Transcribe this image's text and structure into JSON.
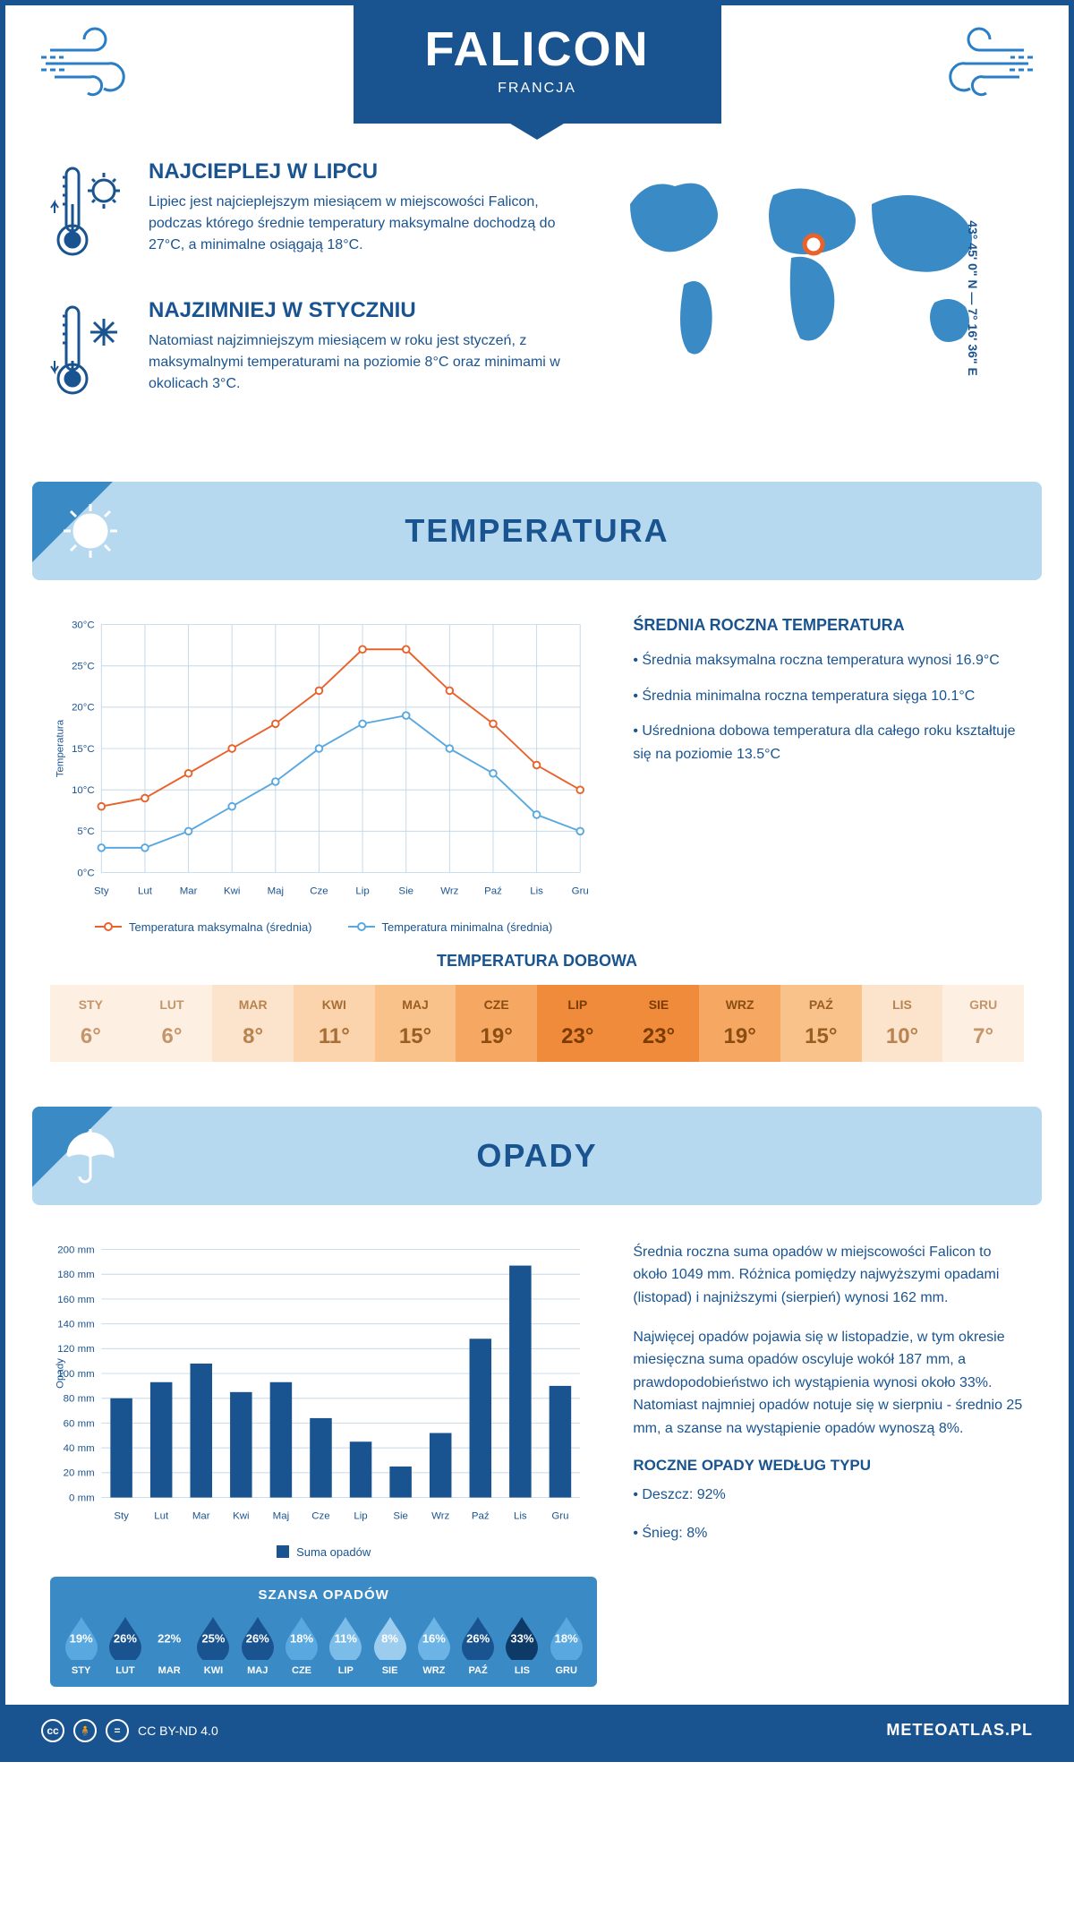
{
  "header": {
    "title": "FALICON",
    "country": "FRANCJA"
  },
  "coords": "43° 45' 0\" N — 7° 16' 36\" E",
  "facts": {
    "warm": {
      "title": "NAJCIEPLEJ W LIPCU",
      "text": "Lipiec jest najcieplejszym miesiącem w miejscowości Falicon, podczas którego średnie temperatury maksymalne dochodzą do 27°C, a minimalne osiągają 18°C."
    },
    "cold": {
      "title": "NAJZIMNIEJ W STYCZNIU",
      "text": "Natomiast najzimniejszym miesiącem w roku jest styczeń, z maksymalnymi temperaturami na poziomie 8°C oraz minimami w okolicach 3°C."
    }
  },
  "colors": {
    "primary": "#1a5490",
    "secondary": "#3a8ac5",
    "banner": "#b7d9f0",
    "orange": "#e8622c",
    "blue_line": "#5aa8e0",
    "bar": "#1a5490",
    "grid": "#c5d8e8"
  },
  "temperature": {
    "section_title": "TEMPERATURA",
    "chart": {
      "type": "line",
      "months": [
        "Sty",
        "Lut",
        "Mar",
        "Kwi",
        "Maj",
        "Cze",
        "Lip",
        "Sie",
        "Wrz",
        "Paź",
        "Lis",
        "Gru"
      ],
      "max": [
        8,
        9,
        12,
        15,
        18,
        22,
        27,
        27,
        22,
        18,
        13,
        10
      ],
      "min": [
        3,
        3,
        5,
        8,
        11,
        15,
        18,
        19,
        15,
        12,
        7,
        5
      ],
      "ylim": [
        0,
        30
      ],
      "ytick_step": 5,
      "ylabel": "Temperatura",
      "max_color": "#e8622c",
      "min_color": "#5aa8e0",
      "grid_color": "#c5d8e8",
      "line_width": 2,
      "marker_size": 4
    },
    "legend": {
      "max": "Temperatura maksymalna (średnia)",
      "min": "Temperatura minimalna (średnia)"
    },
    "info": {
      "title": "ŚREDNIA ROCZNA TEMPERATURA",
      "bullets": [
        "• Średnia maksymalna roczna temperatura wynosi 16.9°C",
        "• Średnia minimalna roczna temperatura sięga 10.1°C",
        "• Uśredniona dobowa temperatura dla całego roku kształtuje się na poziomie 13.5°C"
      ]
    },
    "daily": {
      "title": "TEMPERATURA DOBOWA",
      "months": [
        "STY",
        "LUT",
        "MAR",
        "KWI",
        "MAJ",
        "CZE",
        "LIP",
        "SIE",
        "WRZ",
        "PAŹ",
        "LIS",
        "GRU"
      ],
      "values": [
        "6°",
        "6°",
        "8°",
        "11°",
        "15°",
        "19°",
        "23°",
        "23°",
        "19°",
        "15°",
        "10°",
        "7°"
      ],
      "bg_colors": [
        "#fdf0e2",
        "#fdf0e2",
        "#fce4cc",
        "#fbd4ad",
        "#f9c28a",
        "#f6a863",
        "#f08b3c",
        "#f08b3c",
        "#f6a863",
        "#f9c28a",
        "#fce4cc",
        "#fdf0e2"
      ],
      "text_colors": [
        "#c4956a",
        "#c4956a",
        "#b8834f",
        "#a86f35",
        "#9a5e22",
        "#8a4d12",
        "#7a3c00",
        "#7a3c00",
        "#8a4d12",
        "#9a5e22",
        "#b8834f",
        "#c4956a"
      ]
    }
  },
  "precipitation": {
    "section_title": "OPADY",
    "chart": {
      "type": "bar",
      "months": [
        "Sty",
        "Lut",
        "Mar",
        "Kwi",
        "Maj",
        "Cze",
        "Lip",
        "Sie",
        "Wrz",
        "Paź",
        "Lis",
        "Gru"
      ],
      "values": [
        80,
        93,
        108,
        85,
        93,
        64,
        45,
        25,
        52,
        128,
        187,
        90
      ],
      "ylim": [
        0,
        200
      ],
      "ytick_step": 20,
      "ylabel": "Opady",
      "bar_color": "#1a5490",
      "grid_color": "#c5d8e8",
      "bar_width": 0.55
    },
    "legend": "Suma opadów",
    "text1": "Średnia roczna suma opadów w miejscowości Falicon to około 1049 mm. Różnica pomiędzy najwyższymi opadami (listopad) i najniższymi (sierpień) wynosi 162 mm.",
    "text2": "Najwięcej opadów pojawia się w listopadzie, w tym okresie miesięczna suma opadów oscyluje wokół 187 mm, a prawdopodobieństwo ich wystąpienia wynosi około 33%. Natomiast najmniej opadów notuje się w sierpniu - średnio 25 mm, a szanse na wystąpienie opadów wynoszą 8%.",
    "by_type": {
      "title": "ROCZNE OPADY WEDŁUG TYPU",
      "items": [
        "• Deszcz: 92%",
        "• Śnieg: 8%"
      ]
    },
    "chance": {
      "title": "SZANSA OPADÓW",
      "months": [
        "STY",
        "LUT",
        "MAR",
        "KWI",
        "MAJ",
        "CZE",
        "LIP",
        "SIE",
        "WRZ",
        "PAŹ",
        "LIS",
        "GRU"
      ],
      "pct": [
        "19%",
        "26%",
        "22%",
        "25%",
        "26%",
        "18%",
        "11%",
        "8%",
        "16%",
        "26%",
        "33%",
        "18%"
      ],
      "colors": [
        "#5aa8e0",
        "#1a5490",
        "#3a8ac5",
        "#1a5490",
        "#1a5490",
        "#5aa8e0",
        "#7bbce8",
        "#9ccdee",
        "#6bb4e5",
        "#1a5490",
        "#0d3a66",
        "#5aa8e0"
      ]
    }
  },
  "footer": {
    "license": "CC BY-ND 4.0",
    "site": "METEOATLAS.PL"
  }
}
